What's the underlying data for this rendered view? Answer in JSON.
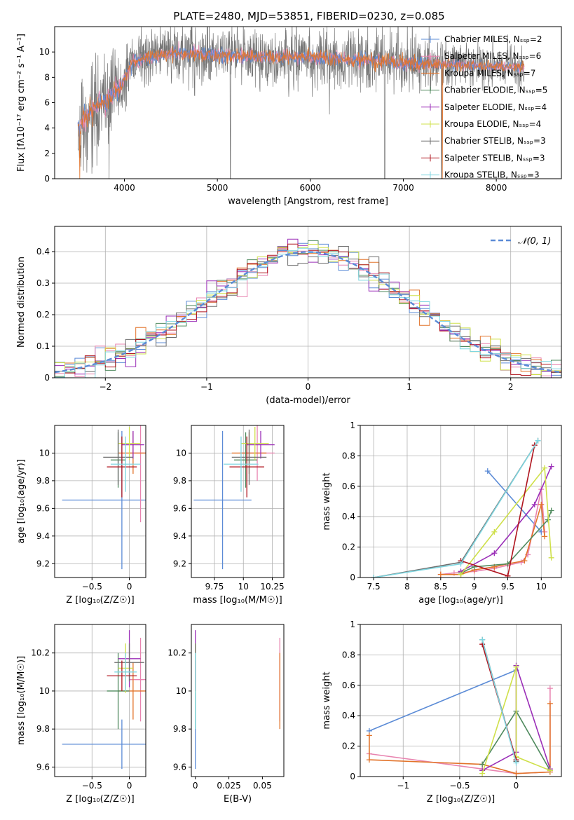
{
  "figure": {
    "title": "PLATE=2480, MJD=53851, FIBERID=0230, z=0.085"
  },
  "chart_data": [
    {
      "id": "spectrum",
      "type": "line",
      "xlabel": "wavelength [Angstrom, rest frame]",
      "ylabel": "Flux [fλ10⁻¹⁷ erg cm⁻² s⁻¹ A⁻¹]",
      "xlim": [
        3250,
        8700
      ],
      "ylim": [
        0,
        12
      ],
      "xticks": [
        4000,
        5000,
        6000,
        7000,
        8000
      ],
      "yticks": [
        0,
        2,
        4,
        6,
        8,
        10
      ],
      "grid": false,
      "legend_position": "top-right",
      "series": [
        {
          "name": "Chabrier MILES, Nₛₛₚ=2",
          "color": "#5b8bd6",
          "marker": "+"
        },
        {
          "name": "Salpeter MILES, Nₛₛₚ=6",
          "color": "#e884b0",
          "marker": "+"
        },
        {
          "name": "Kroupa MILES, Nₛₛₚ=7",
          "color": "#e2732a",
          "marker": "+"
        },
        {
          "name": "Chabrier ELODIE, Nₛₛₚ=5",
          "color": "#4f8a5e",
          "marker": "+"
        },
        {
          "name": "Salpeter ELODIE, Nₛₛₚ=4",
          "color": "#9b2fb8",
          "marker": "+"
        },
        {
          "name": "Kroupa ELODIE, Nₛₛₚ=4",
          "color": "#cfe04a",
          "marker": "+"
        },
        {
          "name": "Chabrier STELIB, Nₛₛₚ=3",
          "color": "#6e6e6e",
          "marker": "+"
        },
        {
          "name": "Salpeter STELIB, Nₛₛₚ=3",
          "color": "#b0151f",
          "marker": "+"
        },
        {
          "name": "Kroupa STELIB, Nₛₛₚ=3",
          "color": "#7fd6e0",
          "marker": "+"
        }
      ],
      "continuum_knots": {
        "x": [
          3500,
          3650,
          3800,
          3950,
          4100,
          4500,
          5000,
          5500,
          6000,
          6500,
          7000,
          7400,
          7700,
          8000,
          8300
        ],
        "y": [
          3.8,
          5.4,
          6.1,
          7.2,
          9.3,
          9.9,
          9.75,
          9.6,
          9.6,
          9.35,
          9.15,
          9.05,
          8.9,
          8.85,
          8.8
        ]
      }
    },
    {
      "id": "residuals",
      "type": "histogram",
      "xlabel": "(data-model)/error",
      "ylabel": "Normed distribution",
      "xlim": [
        -2.5,
        2.5
      ],
      "ylim": [
        0,
        0.48
      ],
      "xticks": [
        -2,
        -1,
        0,
        1,
        2
      ],
      "yticks": [
        0.0,
        0.1,
        0.2,
        0.3,
        0.4
      ],
      "grid": true,
      "legend_position": "top-right",
      "legend": "𝒩(0, 1)",
      "reference_curve": {
        "mean": 0,
        "sigma": 1,
        "color": "#5b8bd6",
        "style": "dashed"
      },
      "bin_width": 0.1
    },
    {
      "id": "age-vs-Z",
      "type": "errorbar",
      "xlabel": "Z [log₁₀(Z/Z☉)]",
      "ylabel": "age  [log₁₀(age/yr)]",
      "xlim": [
        -1.0,
        0.22
      ],
      "ylim": [
        9.1,
        10.2
      ],
      "xticks": [
        -0.5,
        0.0
      ],
      "yticks": [
        9.2,
        9.4,
        9.6,
        9.8,
        10.0
      ],
      "grid": true,
      "points": [
        {
          "color": "#5b8bd6",
          "x": -0.1,
          "xerr": 0.8,
          "y": 9.66,
          "yerr": 0.5
        },
        {
          "color": "#e884b0",
          "x": 0.15,
          "xerr": 0.15,
          "y": 10.0,
          "yerr": 0.5
        },
        {
          "color": "#e2732a",
          "x": 0.05,
          "xerr": 0.2,
          "y": 10.0,
          "yerr": 0.15
        },
        {
          "color": "#4f8a5e",
          "x": -0.15,
          "xerr": 0.1,
          "y": 9.95,
          "yerr": 0.2
        },
        {
          "color": "#9b2fb8",
          "x": 0.05,
          "xerr": 0.15,
          "y": 10.06,
          "yerr": 0.1
        },
        {
          "color": "#cfe04a",
          "x": 0.0,
          "xerr": 0.15,
          "y": 10.07,
          "yerr": 0.12
        },
        {
          "color": "#6e6e6e",
          "x": -0.15,
          "xerr": 0.2,
          "y": 9.97,
          "yerr": 0.2
        },
        {
          "color": "#b0151f",
          "x": -0.1,
          "xerr": 0.2,
          "y": 9.9,
          "yerr": 0.22
        },
        {
          "color": "#7fd6e0",
          "x": -0.05,
          "xerr": 0.2,
          "y": 9.92,
          "yerr": 0.2
        }
      ]
    },
    {
      "id": "age-vs-mass",
      "type": "errorbar",
      "xlabel": "mass [log₁₀(M/M☉)]",
      "ylabel": "",
      "xlim": [
        9.55,
        10.35
      ],
      "ylim": [
        9.1,
        10.2
      ],
      "xticks": [
        9.75,
        10.0,
        10.25
      ],
      "yticks": [
        9.2,
        9.4,
        9.6,
        9.8,
        10.0
      ],
      "grid": true,
      "points": [
        {
          "color": "#5b8bd6",
          "x": 9.82,
          "xerr": 0.25,
          "y": 9.66,
          "yerr": 0.5
        },
        {
          "color": "#e884b0",
          "x": 10.12,
          "xerr": 0.15,
          "y": 10.0,
          "yerr": 0.2
        },
        {
          "color": "#e2732a",
          "x": 10.05,
          "xerr": 0.15,
          "y": 10.0,
          "yerr": 0.15
        },
        {
          "color": "#4f8a5e",
          "x": 10.02,
          "xerr": 0.1,
          "y": 9.95,
          "yerr": 0.2
        },
        {
          "color": "#9b2fb8",
          "x": 10.15,
          "xerr": 0.12,
          "y": 10.06,
          "yerr": 0.1
        },
        {
          "color": "#cfe04a",
          "x": 10.1,
          "xerr": 0.12,
          "y": 10.07,
          "yerr": 0.12
        },
        {
          "color": "#6e6e6e",
          "x": 10.05,
          "xerr": 0.15,
          "y": 9.97,
          "yerr": 0.2
        },
        {
          "color": "#b0151f",
          "x": 10.03,
          "xerr": 0.15,
          "y": 9.9,
          "yerr": 0.22
        },
        {
          "color": "#7fd6e0",
          "x": 9.98,
          "xerr": 0.15,
          "y": 9.92,
          "yerr": 0.2
        }
      ]
    },
    {
      "id": "mass-weight-vs-age",
      "type": "line",
      "xlabel": "age  [log₁₀(age/yr)]",
      "ylabel": "mass weight",
      "xlim": [
        7.3,
        10.3
      ],
      "ylim": [
        0,
        1.0
      ],
      "xticks": [
        7.5,
        8.0,
        8.5,
        9.0,
        9.5,
        10.0
      ],
      "yticks": [
        0.0,
        0.2,
        0.4,
        0.6,
        0.8,
        1.0
      ],
      "grid": true,
      "series": [
        {
          "color": "#5b8bd6",
          "x": [
            9.2,
            10.0
          ],
          "y": [
            0.7,
            0.3
          ]
        },
        {
          "color": "#e884b0",
          "x": [
            8.5,
            8.7,
            9.0,
            9.3,
            9.5,
            9.7,
            9.8,
            10.0,
            10.05
          ],
          "y": [
            0.02,
            0.03,
            0.04,
            0.06,
            0.08,
            0.1,
            0.15,
            0.58,
            0.3
          ]
        },
        {
          "color": "#e2732a",
          "x": [
            8.5,
            8.8,
            9.0,
            9.3,
            9.5,
            9.75,
            10.0,
            10.05
          ],
          "y": [
            0.02,
            0.02,
            0.05,
            0.07,
            0.09,
            0.11,
            0.48,
            0.27
          ]
        },
        {
          "color": "#4f8a5e",
          "x": [
            8.8,
            9.0,
            9.5,
            10.1,
            10.15
          ],
          "y": [
            0.03,
            0.07,
            0.09,
            0.38,
            0.44
          ]
        },
        {
          "color": "#9b2fb8",
          "x": [
            8.8,
            9.3,
            9.9,
            10.15
          ],
          "y": [
            0.04,
            0.16,
            0.48,
            0.73
          ]
        },
        {
          "color": "#cfe04a",
          "x": [
            8.8,
            9.3,
            10.05,
            10.15
          ],
          "y": [
            0.02,
            0.3,
            0.72,
            0.13
          ]
        },
        {
          "color": "#6e6e6e",
          "x": [
            7.5,
            8.8,
            9.95
          ],
          "y": [
            0.0,
            0.1,
            0.9
          ]
        },
        {
          "color": "#b0151f",
          "x": [
            8.8,
            9.5,
            9.9
          ],
          "y": [
            0.11,
            0.01,
            0.87
          ]
        },
        {
          "color": "#7fd6e0",
          "x": [
            7.5,
            8.8,
            9.95
          ],
          "y": [
            0.0,
            0.09,
            0.9
          ]
        }
      ]
    },
    {
      "id": "mass-vs-Z",
      "type": "errorbar",
      "xlabel": "Z [log₁₀(Z/Z☉)]",
      "ylabel": "mass [log₁₀(M/M☉)]",
      "xlim": [
        -1.0,
        0.22
      ],
      "ylim": [
        9.55,
        10.35
      ],
      "xticks": [
        -0.5,
        0.0
      ],
      "yticks": [
        9.6,
        9.8,
        10.0,
        10.2
      ],
      "grid": true,
      "points": [
        {
          "color": "#5b8bd6",
          "x": -0.1,
          "xerr": 0.8,
          "y": 9.72,
          "yerr": 0.13
        },
        {
          "color": "#e884b0",
          "x": 0.15,
          "xerr": 0.15,
          "y": 10.06,
          "yerr": 0.22
        },
        {
          "color": "#e2732a",
          "x": 0.05,
          "xerr": 0.2,
          "y": 10.0,
          "yerr": 0.15
        },
        {
          "color": "#4f8a5e",
          "x": -0.15,
          "xerr": 0.15,
          "y": 10.0,
          "yerr": 0.2
        },
        {
          "color": "#9b2fb8",
          "x": 0.0,
          "xerr": 0.15,
          "y": 10.17,
          "yerr": 0.15
        },
        {
          "color": "#cfe04a",
          "x": -0.05,
          "xerr": 0.1,
          "y": 10.12,
          "yerr": 0.13
        },
        {
          "color": "#6e6e6e",
          "x": 0.0,
          "xerr": 0.2,
          "y": 10.15,
          "yerr": 0.1
        },
        {
          "color": "#b0151f",
          "x": -0.1,
          "xerr": 0.2,
          "y": 10.08,
          "yerr": 0.08
        },
        {
          "color": "#7fd6e0",
          "x": -0.05,
          "xerr": 0.15,
          "y": 10.1,
          "yerr": 0.1
        }
      ]
    },
    {
      "id": "mass-vs-EBV",
      "type": "errorbar",
      "xlabel": "E(B-V)",
      "ylabel": "",
      "xlim": [
        -0.003,
        0.066
      ],
      "ylim": [
        9.55,
        10.35
      ],
      "xticks": [
        0.0,
        0.025,
        0.05
      ],
      "yticks": [
        9.6,
        9.8,
        10.0,
        10.2
      ],
      "grid": false,
      "points": [
        {
          "color": "#5b8bd6",
          "x": 0.0,
          "y": 9.72,
          "yerr": 0.13
        },
        {
          "color": "#e884b0",
          "x": 0.063,
          "y": 10.06,
          "yerr": 0.22
        },
        {
          "color": "#e2732a",
          "x": 0.063,
          "y": 10.0,
          "yerr": 0.2
        },
        {
          "color": "#4f8a5e",
          "x": 0.0,
          "y": 10.0,
          "yerr": 0.2
        },
        {
          "color": "#9b2fb8",
          "x": 0.0,
          "y": 10.17,
          "yerr": 0.15
        },
        {
          "color": "#cfe04a",
          "x": 0.0,
          "y": 10.12,
          "yerr": 0.13
        },
        {
          "color": "#6e6e6e",
          "x": 0.0,
          "y": 10.15,
          "yerr": 0.1
        },
        {
          "color": "#b0151f",
          "x": 0.0,
          "y": 10.08,
          "yerr": 0.08
        },
        {
          "color": "#7fd6e0",
          "x": 0.0,
          "y": 10.0,
          "yerr": 0.2
        }
      ]
    },
    {
      "id": "mass-weight-vs-Z",
      "type": "line",
      "xlabel": "Z [log₁₀(Z/Z☉)]",
      "ylabel": "mass weight",
      "xlim": [
        -1.38,
        0.4
      ],
      "ylim": [
        0,
        1.0
      ],
      "xticks": [
        -1.0,
        -0.5,
        0.0
      ],
      "yticks": [
        0.0,
        0.2,
        0.4,
        0.6,
        0.8,
        1.0
      ],
      "grid": true,
      "series": [
        {
          "color": "#5b8bd6",
          "x": [
            -1.3,
            0.0
          ],
          "y": [
            0.3,
            0.7
          ]
        },
        {
          "color": "#e884b0",
          "x": [
            -1.3,
            -0.3,
            0.0,
            0.3,
            0.3
          ],
          "y": [
            0.15,
            0.05,
            0.02,
            0.03,
            0.58
          ]
        },
        {
          "color": "#e2732a",
          "x": [
            -1.3,
            -1.3,
            -0.3,
            0.0,
            0.3,
            0.3
          ],
          "y": [
            0.27,
            0.11,
            0.08,
            0.02,
            0.03,
            0.48
          ]
        },
        {
          "color": "#4f8a5e",
          "x": [
            -0.3,
            0.0,
            0.3
          ],
          "y": [
            0.08,
            0.43,
            0.04
          ]
        },
        {
          "color": "#9b2fb8",
          "x": [
            -0.3,
            0.0,
            0.0,
            0.3
          ],
          "y": [
            0.04,
            0.16,
            0.73,
            0.05
          ]
        },
        {
          "color": "#cfe04a",
          "x": [
            -0.3,
            0.0,
            0.0,
            0.3
          ],
          "y": [
            0.02,
            0.72,
            0.13,
            0.04
          ]
        },
        {
          "color": "#6e6e6e",
          "x": [
            -0.3,
            0.0
          ],
          "y": [
            0.9,
            0.1
          ]
        },
        {
          "color": "#b0151f",
          "x": [
            -0.3,
            0.0
          ],
          "y": [
            0.87,
            0.11
          ]
        },
        {
          "color": "#7fd6e0",
          "x": [
            -0.3,
            0.0
          ],
          "y": [
            0.9,
            0.09
          ]
        }
      ]
    }
  ]
}
